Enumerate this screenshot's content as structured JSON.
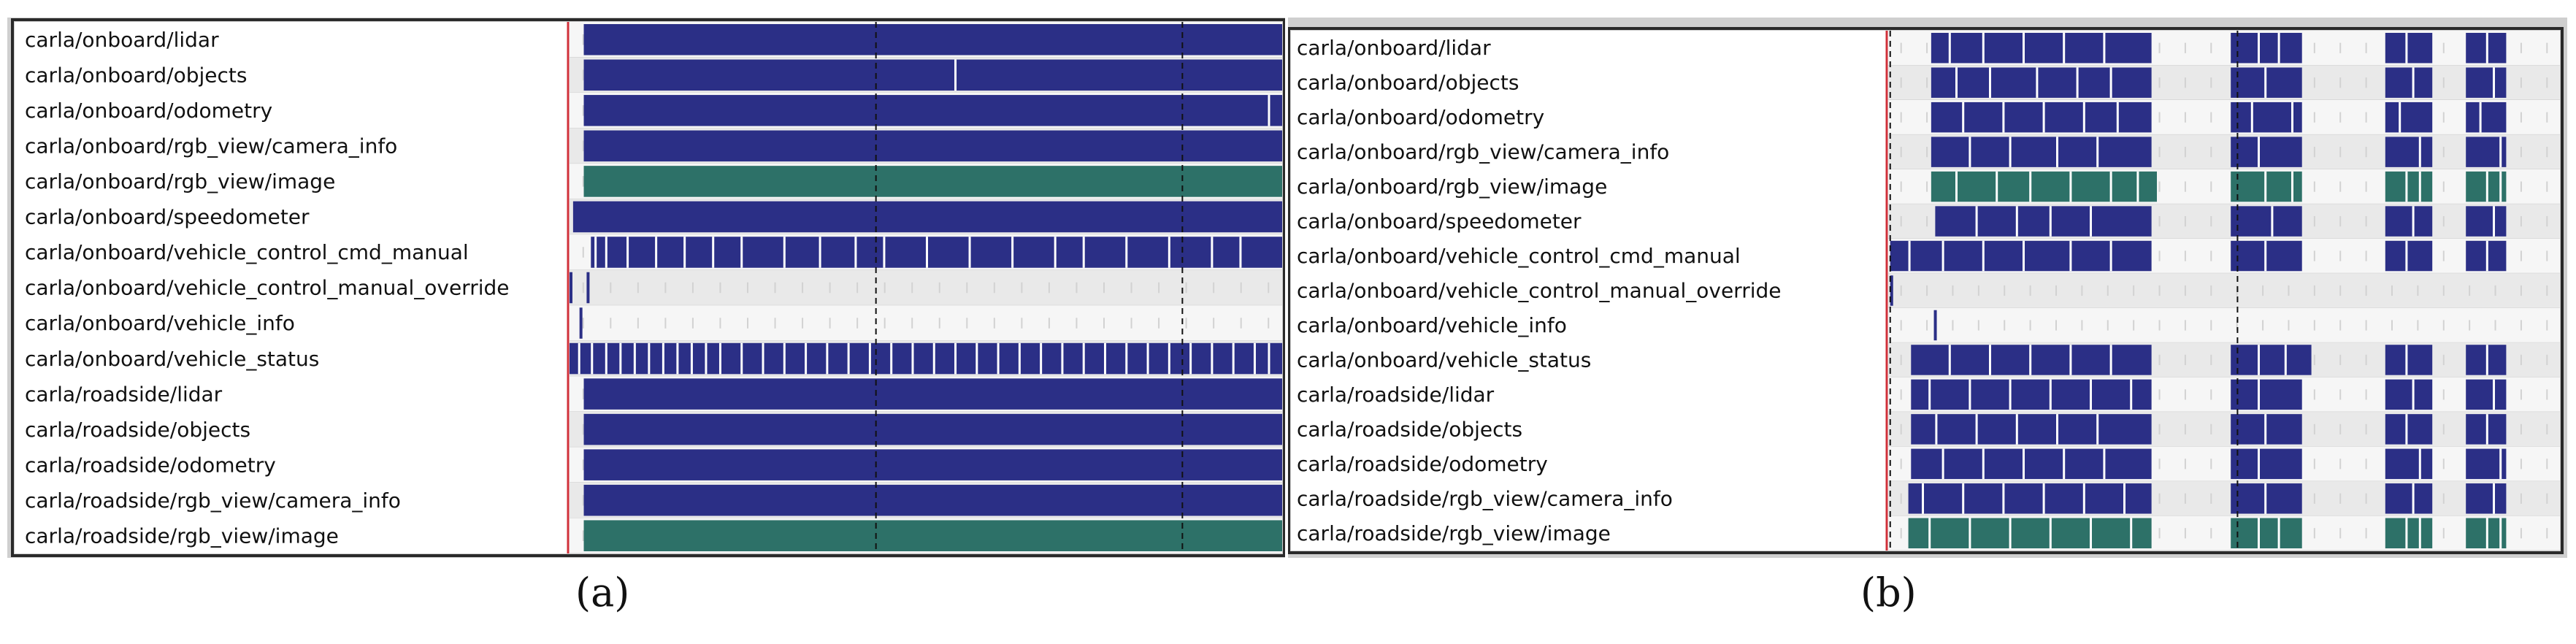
{
  "colors": {
    "bar": "#2b2f86",
    "image": "#2d7168",
    "row_even": "#e9e9e9",
    "row_odd": "#f6f6f6",
    "label_bg": "#ffffff",
    "cursor": "#d0303a",
    "frame": "#2a2a2a",
    "gap": "#ffffff"
  },
  "chart_data": [
    {
      "type": "timeline",
      "panel": "a",
      "caption": "(a)",
      "timeline_range": [
        0,
        1
      ],
      "cursor_x": 0.0,
      "dashed_markers": [
        0.43,
        0.86
      ],
      "topics": [
        {
          "label": "carla/onboard/lidar",
          "color": "bar",
          "segments": [
            [
              0.02,
              1.0
            ]
          ],
          "gaps": []
        },
        {
          "label": "carla/onboard/objects",
          "color": "bar",
          "segments": [
            [
              0.02,
              1.0
            ]
          ],
          "gaps": [
            0.54
          ]
        },
        {
          "label": "carla/onboard/odometry",
          "color": "bar",
          "segments": [
            [
              0.02,
              1.0
            ]
          ],
          "gaps": [
            0.98
          ]
        },
        {
          "label": "carla/onboard/rgb_view/camera_info",
          "color": "bar",
          "segments": [
            [
              0.02,
              1.0
            ]
          ],
          "gaps": []
        },
        {
          "label": "carla/onboard/rgb_view/image",
          "color": "image",
          "segments": [
            [
              0.02,
              1.0
            ]
          ],
          "gaps": []
        },
        {
          "label": "carla/onboard/speedometer",
          "color": "bar",
          "segments": [
            [
              0.005,
              1.0
            ]
          ],
          "gaps": []
        },
        {
          "label": "carla/onboard/vehicle_control_cmd_manual",
          "color": "bar",
          "segments": [
            [
              0.03,
              1.0
            ]
          ],
          "gaps": [
            0.035,
            0.05,
            0.08,
            0.12,
            0.16,
            0.2,
            0.24,
            0.3,
            0.35,
            0.4,
            0.44,
            0.5,
            0.56,
            0.62,
            0.68,
            0.72,
            0.78,
            0.84,
            0.9,
            0.94
          ]
        },
        {
          "label": "carla/onboard/vehicle_control_manual_override",
          "color": "bar",
          "segments": [
            [
              0.0,
              0.004
            ],
            [
              0.024,
              0.028
            ]
          ],
          "gaps": []
        },
        {
          "label": "carla/onboard/vehicle_info",
          "color": "bar",
          "segments": [
            [
              0.014,
              0.018
            ]
          ],
          "gaps": []
        },
        {
          "label": "carla/onboard/vehicle_status",
          "color": "bar",
          "segments": [
            [
              0.0,
              1.0
            ]
          ],
          "gaps": [
            0.012,
            0.03,
            0.05,
            0.07,
            0.09,
            0.11,
            0.13,
            0.15,
            0.17,
            0.19,
            0.21,
            0.24,
            0.27,
            0.3,
            0.33,
            0.36,
            0.39,
            0.42,
            0.45,
            0.48,
            0.51,
            0.54,
            0.57,
            0.6,
            0.63,
            0.66,
            0.69,
            0.72,
            0.75,
            0.78,
            0.81,
            0.84,
            0.87,
            0.9,
            0.93,
            0.96,
            0.98
          ]
        },
        {
          "label": "carla/roadside/lidar",
          "color": "bar",
          "segments": [
            [
              0.02,
              1.0
            ]
          ],
          "gaps": []
        },
        {
          "label": "carla/roadside/objects",
          "color": "bar",
          "segments": [
            [
              0.02,
              1.0
            ]
          ],
          "gaps": []
        },
        {
          "label": "carla/roadside/odometry",
          "color": "bar",
          "segments": [
            [
              0.02,
              1.0
            ]
          ],
          "gaps": []
        },
        {
          "label": "carla/roadside/rgb_view/camera_info",
          "color": "bar",
          "segments": [
            [
              0.02,
              1.0
            ]
          ],
          "gaps": []
        },
        {
          "label": "carla/roadside/rgb_view/image",
          "color": "image",
          "segments": [
            [
              0.02,
              1.0
            ]
          ],
          "gaps": []
        }
      ]
    },
    {
      "type": "timeline",
      "panel": "b",
      "caption": "(b)",
      "timeline_range": [
        0,
        1
      ],
      "cursor_x": 0.0,
      "dashed_markers": [
        0.003,
        0.52
      ],
      "topics": [
        {
          "label": "carla/onboard/lidar",
          "color": "bar",
          "segments": [
            [
              0.064,
              0.392
            ],
            [
              0.51,
              0.616
            ],
            [
              0.74,
              0.81
            ],
            [
              0.86,
              0.92
            ]
          ],
          "gaps": [
            0.09,
            0.14,
            0.2,
            0.26,
            0.32,
            0.55,
            0.58,
            0.77,
            0.89
          ]
        },
        {
          "label": "carla/onboard/objects",
          "color": "bar",
          "segments": [
            [
              0.064,
              0.392
            ],
            [
              0.51,
              0.616
            ],
            [
              0.74,
              0.81
            ],
            [
              0.86,
              0.92
            ]
          ],
          "gaps": [
            0.1,
            0.15,
            0.22,
            0.28,
            0.33,
            0.56,
            0.78,
            0.9
          ]
        },
        {
          "label": "carla/onboard/odometry",
          "color": "bar",
          "segments": [
            [
              0.064,
              0.392
            ],
            [
              0.51,
              0.616
            ],
            [
              0.74,
              0.81
            ],
            [
              0.86,
              0.92
            ]
          ],
          "gaps": [
            0.11,
            0.17,
            0.23,
            0.29,
            0.34,
            0.54,
            0.6,
            0.76,
            0.88
          ]
        },
        {
          "label": "carla/onboard/rgb_view/camera_info",
          "color": "bar",
          "segments": [
            [
              0.064,
              0.392
            ],
            [
              0.51,
              0.616
            ],
            [
              0.74,
              0.81
            ],
            [
              0.86,
              0.92
            ]
          ],
          "gaps": [
            0.12,
            0.18,
            0.25,
            0.31,
            0.55,
            0.79,
            0.91
          ]
        },
        {
          "label": "carla/onboard/rgb_view/image",
          "color": "image",
          "segments": [
            [
              0.064,
              0.4
            ],
            [
              0.51,
              0.616
            ],
            [
              0.74,
              0.81
            ],
            [
              0.86,
              0.92
            ]
          ],
          "gaps": [
            0.1,
            0.16,
            0.21,
            0.27,
            0.33,
            0.37,
            0.56,
            0.6,
            0.77,
            0.79,
            0.89,
            0.91
          ]
        },
        {
          "label": "carla/onboard/speedometer",
          "color": "bar",
          "segments": [
            [
              0.07,
              0.392
            ],
            [
              0.51,
              0.616
            ],
            [
              0.74,
              0.81
            ],
            [
              0.86,
              0.92
            ]
          ],
          "gaps": [
            0.13,
            0.19,
            0.24,
            0.3,
            0.57,
            0.78,
            0.9
          ]
        },
        {
          "label": "carla/onboard/vehicle_control_cmd_manual",
          "color": "bar",
          "segments": [
            [
              0.003,
              0.392
            ],
            [
              0.51,
              0.616
            ],
            [
              0.74,
              0.81
            ],
            [
              0.86,
              0.92
            ]
          ],
          "gaps": [
            0.03,
            0.08,
            0.14,
            0.2,
            0.27,
            0.33,
            0.56,
            0.77,
            0.89
          ]
        },
        {
          "label": "carla/onboard/vehicle_control_manual_override",
          "color": "bar",
          "segments": [
            [
              0.003,
              0.007
            ]
          ],
          "gaps": []
        },
        {
          "label": "carla/onboard/vehicle_info",
          "color": "bar",
          "segments": [
            [
              0.068,
              0.072
            ]
          ],
          "gaps": []
        },
        {
          "label": "carla/onboard/vehicle_status",
          "color": "bar",
          "segments": [
            [
              0.034,
              0.392
            ],
            [
              0.51,
              0.63
            ],
            [
              0.74,
              0.81
            ],
            [
              0.86,
              0.92
            ]
          ],
          "gaps": [
            0.09,
            0.15,
            0.21,
            0.27,
            0.33,
            0.55,
            0.59,
            0.77,
            0.89
          ]
        },
        {
          "label": "carla/roadside/lidar",
          "color": "bar",
          "segments": [
            [
              0.034,
              0.392
            ],
            [
              0.51,
              0.616
            ],
            [
              0.74,
              0.81
            ],
            [
              0.86,
              0.92
            ]
          ],
          "gaps": [
            0.06,
            0.12,
            0.18,
            0.24,
            0.3,
            0.36,
            0.55,
            0.78,
            0.9
          ]
        },
        {
          "label": "carla/roadside/objects",
          "color": "bar",
          "segments": [
            [
              0.034,
              0.392
            ],
            [
              0.51,
              0.616
            ],
            [
              0.74,
              0.81
            ],
            [
              0.86,
              0.92
            ]
          ],
          "gaps": [
            0.07,
            0.13,
            0.19,
            0.25,
            0.31,
            0.56,
            0.77,
            0.89
          ]
        },
        {
          "label": "carla/roadside/odometry",
          "color": "bar",
          "segments": [
            [
              0.034,
              0.392
            ],
            [
              0.51,
              0.616
            ],
            [
              0.74,
              0.81
            ],
            [
              0.86,
              0.92
            ]
          ],
          "gaps": [
            0.08,
            0.14,
            0.2,
            0.26,
            0.32,
            0.55,
            0.79,
            0.91
          ]
        },
        {
          "label": "carla/roadside/rgb_view/camera_info",
          "color": "bar",
          "segments": [
            [
              0.03,
              0.392
            ],
            [
              0.51,
              0.616
            ],
            [
              0.74,
              0.81
            ],
            [
              0.86,
              0.92
            ]
          ],
          "gaps": [
            0.05,
            0.11,
            0.17,
            0.23,
            0.29,
            0.35,
            0.56,
            0.78,
            0.9
          ]
        },
        {
          "label": "carla/roadside/rgb_view/image",
          "color": "image",
          "segments": [
            [
              0.03,
              0.392
            ],
            [
              0.51,
              0.616
            ],
            [
              0.74,
              0.81
            ],
            [
              0.86,
              0.92
            ]
          ],
          "gaps": [
            0.06,
            0.12,
            0.18,
            0.24,
            0.3,
            0.36,
            0.55,
            0.58,
            0.77,
            0.79,
            0.89,
            0.91
          ]
        }
      ]
    }
  ]
}
